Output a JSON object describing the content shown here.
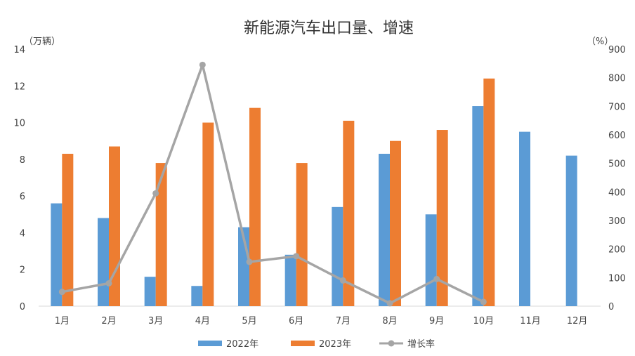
{
  "chart_data": {
    "type": "bar",
    "title": "新能源汽车出口量、增速",
    "ylabel_left": "（万辆）",
    "ylabel_right": "（%）",
    "categories": [
      "1月",
      "2月",
      "3月",
      "4月",
      "5月",
      "6月",
      "7月",
      "8月",
      "9月",
      "10月",
      "11月",
      "12月"
    ],
    "series": [
      {
        "name": "2022年",
        "type": "bar",
        "axis": "left",
        "color": "#5b9bd5",
        "values": [
          5.6,
          4.8,
          1.6,
          1.1,
          4.3,
          2.8,
          5.4,
          8.3,
          5.0,
          10.9,
          9.5,
          8.2
        ]
      },
      {
        "name": "2023年",
        "type": "bar",
        "axis": "left",
        "color": "#ed7d31",
        "values": [
          8.3,
          8.7,
          7.8,
          10.0,
          10.8,
          7.8,
          10.1,
          9.0,
          9.6,
          12.4,
          null,
          null
        ]
      },
      {
        "name": "增长率",
        "type": "line",
        "axis": "right",
        "color": "#a5a5a5",
        "values": [
          50,
          80,
          395,
          845,
          155,
          175,
          90,
          10,
          95,
          15,
          null,
          null
        ]
      }
    ],
    "ylim_left": [
      0,
      14
    ],
    "yticks_left": [
      "0",
      "2",
      "4",
      "6",
      "8",
      "10",
      "12",
      "14"
    ],
    "ylim_right": [
      0,
      900
    ],
    "yticks_right": [
      "0",
      "100",
      "200",
      "300",
      "400",
      "500",
      "600",
      "700",
      "800",
      "900"
    ],
    "legend_position": "bottom",
    "grid": false
  }
}
